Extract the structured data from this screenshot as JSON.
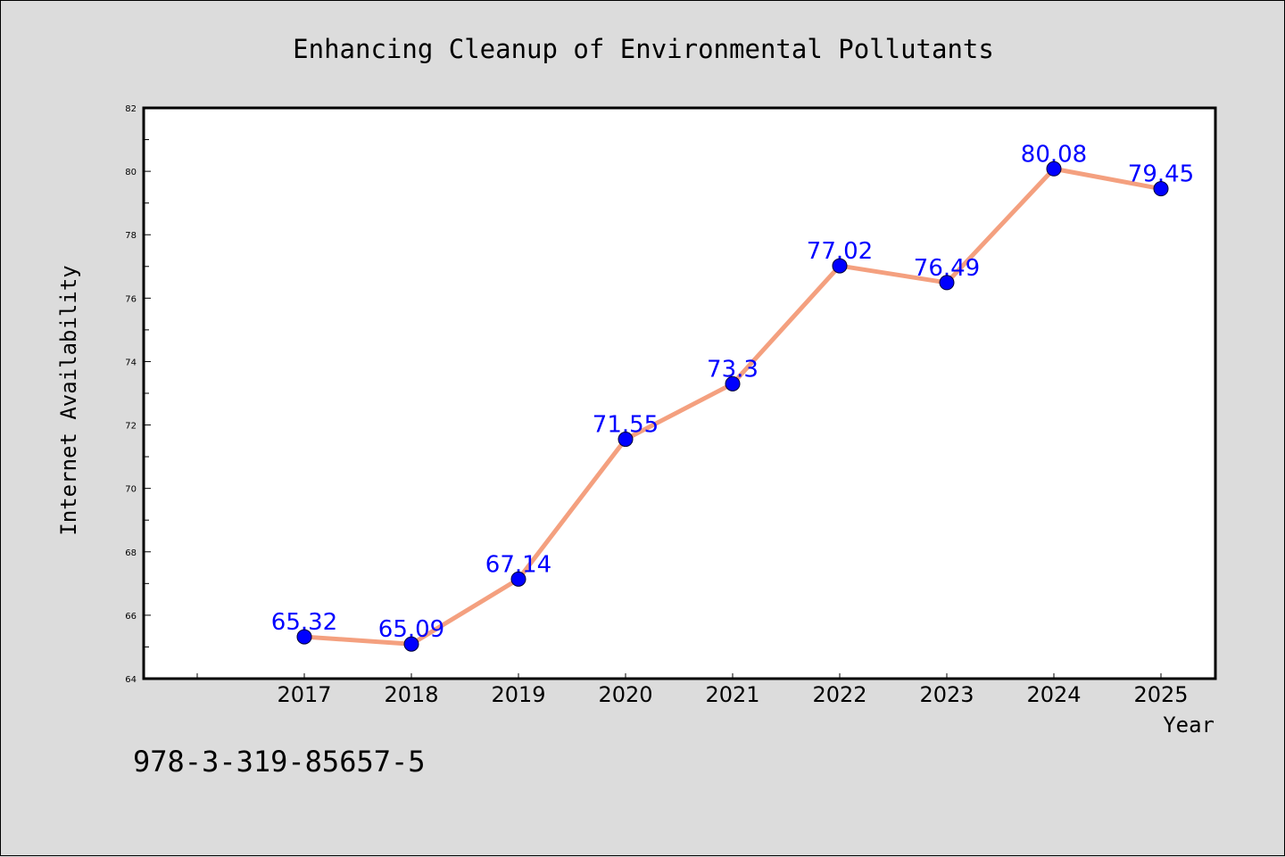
{
  "chart_data": {
    "type": "line",
    "title": "Enhancing Cleanup of Environmental Pollutants",
    "xlabel": "Year",
    "ylabel": "Internet Availability",
    "categories": [
      "2017",
      "2018",
      "2019",
      "2020",
      "2021",
      "2022",
      "2023",
      "2024",
      "2025"
    ],
    "series": [
      {
        "values": [
          65.32,
          65.09,
          67.14,
          71.55,
          73.3,
          77.02,
          76.49,
          80.08,
          79.45
        ],
        "labels": [
          "65.32",
          "65.09",
          "67.14",
          "71.55",
          "73.3",
          "77.02",
          "76.49",
          "80.08",
          "79.45"
        ],
        "line_color": "#f4a07f",
        "marker_color": "#0000ff",
        "label_color": "#0000ff"
      }
    ],
    "ylim": [
      64,
      82
    ],
    "yticks": [
      "64",
      "66",
      "68",
      "70",
      "72",
      "74",
      "76",
      "78",
      "80",
      "82"
    ],
    "grid": false,
    "legend": "none"
  },
  "footer": {
    "isbn": "978-3-319-85657-5"
  },
  "colors": {
    "background": "#dcdcdc",
    "plot_area": "#ffffff"
  }
}
